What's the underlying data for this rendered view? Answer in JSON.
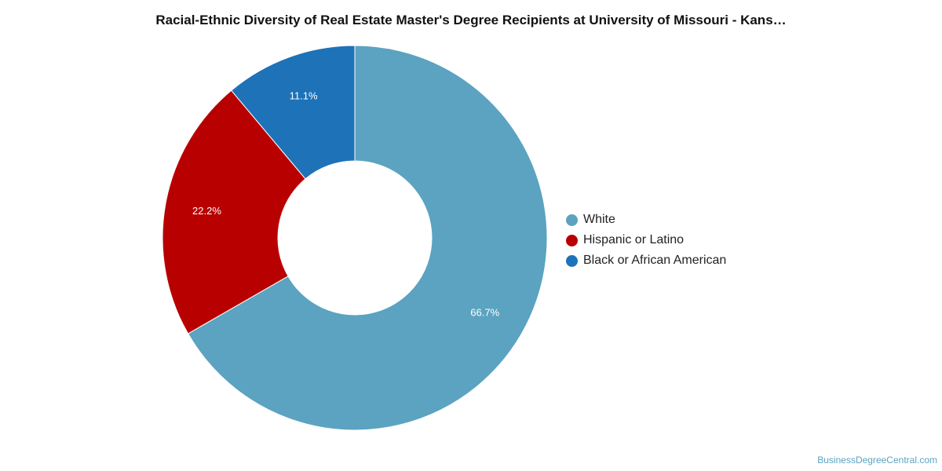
{
  "chart_data": {
    "type": "pie",
    "style": "donut",
    "title": "Racial-Ethnic Diversity of Real Estate Master's Degree Recipients at University of Missouri - Kans…",
    "slices": [
      {
        "name": "White",
        "value": 66.7,
        "label": "66.7%",
        "color": "#5ba3c0"
      },
      {
        "name": "Hispanic or Latino",
        "value": 22.2,
        "label": "22.2%",
        "color": "#b90000"
      },
      {
        "name": "Black or African American",
        "value": 11.1,
        "label": "11.1%",
        "color": "#1e72b8"
      }
    ],
    "legend_position": "right"
  },
  "footer": {
    "source": "BusinessDegreeCentral.com"
  }
}
